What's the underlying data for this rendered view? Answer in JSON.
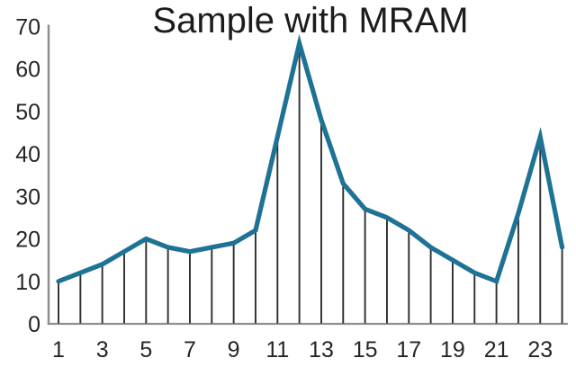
{
  "title": "Sample with MRAM",
  "colors": {
    "line": "#1E7294",
    "stem": "#2E2E2E",
    "axis": "#8F8F8F",
    "text": "#262626",
    "background": "#FFFFFF"
  },
  "chart_data": {
    "type": "line",
    "title": "Sample with MRAM",
    "xlabel": "",
    "ylabel": "",
    "x": [
      1,
      2,
      3,
      4,
      5,
      6,
      7,
      8,
      9,
      10,
      11,
      12,
      13,
      14,
      15,
      16,
      17,
      18,
      19,
      20,
      21,
      22,
      23,
      24
    ],
    "values": [
      10,
      12,
      14,
      17,
      20,
      18,
      17,
      18,
      19,
      22,
      44,
      66,
      48,
      33,
      27,
      25,
      22,
      18,
      15,
      12,
      10,
      26,
      44,
      18
    ],
    "x_tick_labels": [
      "1",
      "3",
      "5",
      "7",
      "9",
      "11",
      "13",
      "15",
      "17",
      "19",
      "21",
      "23"
    ],
    "y_tick_labels": [
      "0",
      "10",
      "20",
      "30",
      "40",
      "50",
      "60",
      "70"
    ],
    "ylim": [
      0,
      70
    ],
    "grid": false,
    "legend": false,
    "drop_lines": true
  }
}
